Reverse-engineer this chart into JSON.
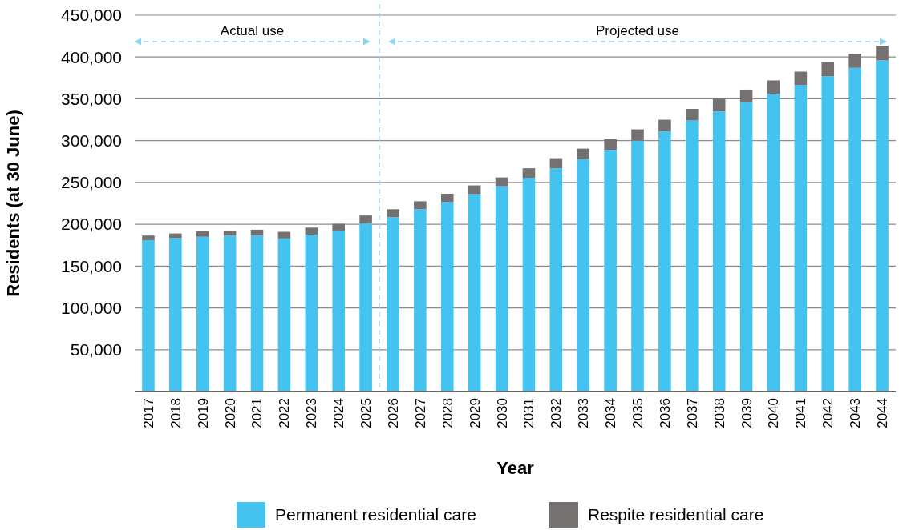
{
  "chart_data": {
    "type": "bar",
    "stacked": true,
    "xlabel": "Year",
    "ylabel": "Residents (at 30 June)",
    "x": [
      2017,
      2018,
      2019,
      2020,
      2021,
      2022,
      2023,
      2024,
      2025,
      2026,
      2027,
      2028,
      2029,
      2030,
      2031,
      2032,
      2033,
      2034,
      2035,
      2036,
      2037,
      2038,
      2039,
      2040,
      2041,
      2042,
      2043,
      2044
    ],
    "xlim": [
      2016.5,
      2044.5
    ],
    "xticks": [
      2017,
      2018,
      2019,
      2020,
      2021,
      2022,
      2023,
      2024,
      2025,
      2026,
      2027,
      2028,
      2029,
      2030,
      2031,
      2032,
      2033,
      2034,
      2035,
      2036,
      2037,
      2038,
      2039,
      2040,
      2041,
      2042,
      2043,
      2044
    ],
    "ylim": [
      0,
      450000
    ],
    "yticks": [
      {
        "value": 50000,
        "label": "50,000"
      },
      {
        "value": 100000,
        "label": "100,000"
      },
      {
        "value": 150000,
        "label": "150,000"
      },
      {
        "value": 200000,
        "label": "200,000"
      },
      {
        "value": 250000,
        "label": "250,000"
      },
      {
        "value": 300000,
        "label": "300,000"
      },
      {
        "value": 350000,
        "label": "350,000"
      },
      {
        "value": 400000,
        "label": "400,000"
      },
      {
        "value": 450000,
        "label": "450,000"
      }
    ],
    "series": [
      {
        "name": "Permanent residential care",
        "color": "#44c3f0",
        "values": [
          181000,
          183500,
          185000,
          186500,
          186500,
          183000,
          187500,
          192500,
          201000,
          208500,
          218000,
          226500,
          236000,
          245500,
          255500,
          267000,
          278000,
          289000,
          300000,
          311000,
          324000,
          335000,
          345500,
          356000,
          366500,
          377000,
          387000,
          396000
        ]
      },
      {
        "name": "Respite residential care",
        "color": "#767171",
        "values": [
          5500,
          5500,
          6500,
          6000,
          7000,
          8000,
          8500,
          8000,
          9500,
          9500,
          9500,
          10000,
          10500,
          10500,
          11500,
          12000,
          12500,
          13000,
          13500,
          14000,
          14000,
          15000,
          15500,
          16000,
          16000,
          16500,
          17000,
          17500
        ]
      }
    ],
    "ref_lines": [
      {
        "axis": "x",
        "value": 2025.5,
        "color": "#8fd3f3",
        "line_style": "dashed"
      }
    ],
    "annotations": [
      "Actual use",
      "Projected use"
    ],
    "grid": "y",
    "legend": "bottom"
  }
}
